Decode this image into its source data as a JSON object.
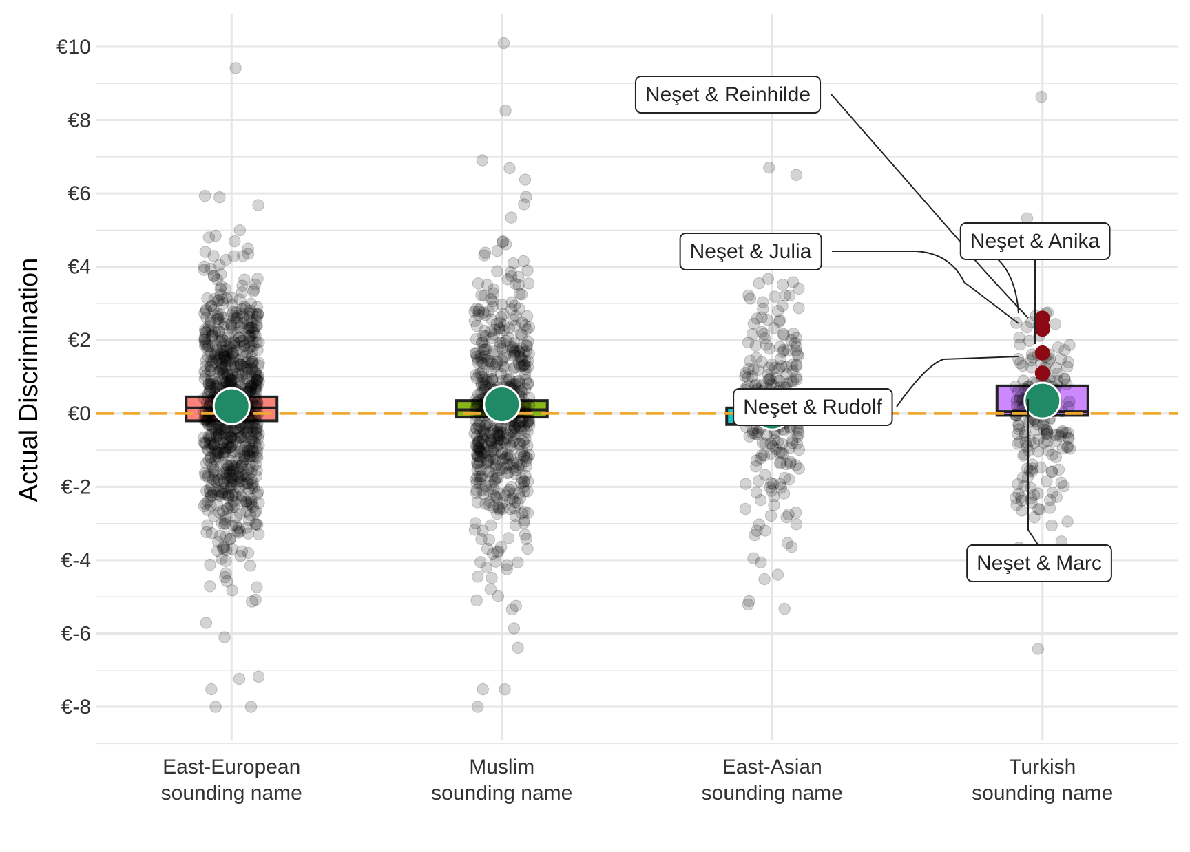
{
  "chart_data": {
    "type": "scatter",
    "title": "",
    "xlabel": "",
    "ylabel": "Actual Discrimination",
    "ylim": [
      -8.9,
      10.9
    ],
    "yticks": [
      10,
      8,
      6,
      4,
      2,
      0,
      -2,
      -4,
      -6,
      -8
    ],
    "ytick_labels": [
      "€10",
      "€8",
      "€6",
      "€4",
      "€2",
      "€0",
      "€-2",
      "€-4",
      "€-6",
      "€-8"
    ],
    "grid": true,
    "reference_line": {
      "y": 0,
      "color": "#F0A830",
      "style": "dashed"
    },
    "categories": [
      {
        "line1": "East-European",
        "line2": "sounding name"
      },
      {
        "line1": "Muslim",
        "line2": "sounding name"
      },
      {
        "line1": "East-Asian",
        "line2": "sounding name"
      },
      {
        "line1": "Turkish",
        "line2": "sounding name"
      }
    ],
    "boxes": [
      {
        "color": "#F8766D",
        "q1": -0.2,
        "median": 0.15,
        "q3": 0.45
      },
      {
        "color": "#7CAE00",
        "q1": -0.1,
        "median": 0.1,
        "q3": 0.35
      },
      {
        "color": "#00BFC4",
        "q1": -0.3,
        "median": 0.0,
        "q3": 0.15
      },
      {
        "color": "#C77CFF",
        "q1": -0.05,
        "median": 0.05,
        "q3": 0.75
      }
    ],
    "means": [
      0.2,
      0.25,
      0.05,
      0.35
    ],
    "mean_color": "#1F8A65",
    "point_counts": [
      800,
      550,
      230,
      190
    ],
    "point_spread": [
      1.8,
      1.7,
      1.7,
      1.4
    ],
    "notable_points": [
      {
        "label": "Neşet & Reinhilde",
        "category": 3,
        "value": 2.6
      },
      {
        "label": "Neşet & Anika",
        "category": 3,
        "value": 2.35
      },
      {
        "label": "Neşet & Julia",
        "category": 3,
        "value": 2.3
      },
      {
        "label": "Neşet & Rudolf",
        "category": 3,
        "value": 1.65
      },
      {
        "label": "Neşet & Marc",
        "category": 3,
        "value": 1.1
      }
    ],
    "notable_color": "#8B0A14"
  }
}
